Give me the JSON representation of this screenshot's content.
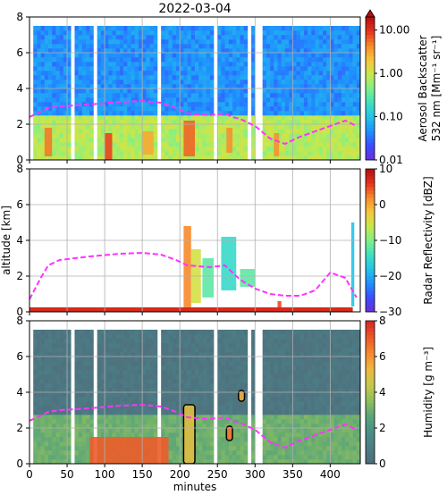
{
  "figure": {
    "title": "2022-03-04",
    "xlabel": "minutes",
    "ylabel": "altitude [km]"
  },
  "chart_data": [
    {
      "type": "heatmap",
      "panel": "aerosol-backscatter",
      "xlim": [
        0,
        440
      ],
      "ylim": [
        0,
        8
      ],
      "x_ticks": [
        0,
        50,
        100,
        150,
        200,
        250,
        300,
        350,
        400
      ],
      "y_ticks": [
        0,
        2,
        4,
        6,
        8
      ],
      "grid": true,
      "colorbar": {
        "label_line1": "Aerosol Backscatter",
        "label_line2": "532 nm [Mm⁻¹ sr⁻¹]",
        "scale": "log",
        "range": [
          0.01,
          20
        ],
        "ticks": [
          "0.01",
          "0.10",
          "1.00",
          "10.00"
        ],
        "extend": "max",
        "colormap": [
          "#6a2fd6",
          "#3b4cff",
          "#1f8fff",
          "#22c3e8",
          "#3fe0c0",
          "#7ff08a",
          "#c8e84a",
          "#f7c63b",
          "#f78a2a",
          "#e5321f",
          "#b30f0f"
        ]
      },
      "dashed_line": {
        "color": "#ff33ff",
        "x": [
          0,
          15,
          25,
          40,
          80,
          120,
          150,
          175,
          195,
          210,
          240,
          260,
          270,
          280,
          300,
          320,
          340,
          360,
          380,
          400,
          420,
          435
        ],
        "y": [
          2.4,
          2.7,
          2.9,
          3.0,
          3.1,
          3.25,
          3.3,
          3.2,
          2.9,
          2.6,
          2.5,
          2.6,
          2.4,
          2.3,
          1.9,
          1.2,
          0.9,
          1.3,
          1.6,
          1.9,
          2.2,
          1.9
        ]
      },
      "field": {
        "top_km": 7.3,
        "mid_value": 0.05,
        "low_value": 0.8,
        "aerosol_layer_top_km": 2.5,
        "gap_minutes": [
          [
            0,
            5
          ],
          [
            55,
            57
          ],
          [
            85,
            87
          ],
          [
            170,
            173
          ],
          [
            245,
            248
          ],
          [
            290,
            293
          ],
          [
            300,
            310
          ]
        ],
        "plumes": [
          {
            "x": [
              20,
              30
            ],
            "bottom": 0.2,
            "top": 1.8,
            "value": 5.0
          },
          {
            "x": [
              100,
              110
            ],
            "bottom": 0.0,
            "top": 1.5,
            "value": 8.0
          },
          {
            "x": [
              150,
              165
            ],
            "bottom": 0.3,
            "top": 1.6,
            "value": 3.0
          },
          {
            "x": [
              205,
              220
            ],
            "bottom": 0.2,
            "top": 2.2,
            "value": 6.0
          },
          {
            "x": [
              262,
              270
            ],
            "bottom": 0.4,
            "top": 1.8,
            "value": 4.0
          },
          {
            "x": [
              325,
              332
            ],
            "bottom": 0.2,
            "top": 1.5,
            "value": 4.0
          }
        ]
      }
    },
    {
      "type": "heatmap",
      "panel": "radar-reflectivity",
      "xlim": [
        0,
        440
      ],
      "ylim": [
        0,
        8
      ],
      "x_ticks": [
        0,
        50,
        100,
        150,
        200,
        250,
        300,
        350,
        400
      ],
      "y_ticks": [
        0,
        2,
        4,
        6,
        8
      ],
      "grid": true,
      "colorbar": {
        "label": "Radar Reflectivity [dBZ]",
        "scale": "linear",
        "range": [
          -30,
          10
        ],
        "ticks": [
          "−30",
          "−20",
          "−10",
          "0",
          "10"
        ],
        "colormap": [
          "#6a2fd6",
          "#3b4cff",
          "#1f8fff",
          "#22c3e8",
          "#3fe0c0",
          "#7ff08a",
          "#c8e84a",
          "#f7c63b",
          "#f78a2a",
          "#e5321f",
          "#b30f0f"
        ]
      },
      "dashed_line": {
        "color": "#ff33ff",
        "x": [
          0,
          15,
          25,
          40,
          80,
          120,
          150,
          175,
          195,
          210,
          240,
          260,
          270,
          280,
          300,
          320,
          340,
          360,
          380,
          400,
          420,
          435
        ],
        "y": [
          0.7,
          1.9,
          2.6,
          2.9,
          3.1,
          3.25,
          3.3,
          3.2,
          2.9,
          2.6,
          2.5,
          2.6,
          2.2,
          1.8,
          1.3,
          1.0,
          0.9,
          0.9,
          1.2,
          2.2,
          1.9,
          0.8
        ]
      },
      "field": {
        "surface_band_km": [
          0.0,
          0.25
        ],
        "surface_value": 7.0,
        "echoes": [
          {
            "x": [
              205,
              215
            ],
            "bottom": 0.2,
            "top": 4.8,
            "value": 2.0
          },
          {
            "x": [
              215,
              228
            ],
            "bottom": 0.5,
            "top": 3.5,
            "value": -5.0
          },
          {
            "x": [
              230,
              245
            ],
            "bottom": 0.8,
            "top": 3.0,
            "value": -12.0
          },
          {
            "x": [
              255,
              275
            ],
            "bottom": 1.2,
            "top": 4.2,
            "value": -15.0
          },
          {
            "x": [
              280,
              300
            ],
            "bottom": 1.4,
            "top": 2.4,
            "value": -12.0
          },
          {
            "x": [
              330,
              335
            ],
            "bottom": 0.1,
            "top": 0.6,
            "value": 5.0
          },
          {
            "x": [
              428,
              432
            ],
            "bottom": 0.3,
            "top": 5.0,
            "value": -18.0
          }
        ]
      }
    },
    {
      "type": "heatmap",
      "panel": "humidity",
      "xlim": [
        0,
        440
      ],
      "ylim": [
        0,
        8
      ],
      "x_ticks": [
        0,
        50,
        100,
        150,
        200,
        250,
        300,
        350,
        400
      ],
      "y_ticks": [
        0,
        2,
        4,
        6,
        8
      ],
      "grid": true,
      "colorbar": {
        "label": "Humidity [g m⁻³]",
        "scale": "linear",
        "range": [
          0,
          8
        ],
        "ticks": [
          "0",
          "2",
          "4",
          "6",
          "8"
        ],
        "colormap": [
          "#4f6b7a",
          "#4c7c85",
          "#4a8f86",
          "#5aa57a",
          "#8fbf5c",
          "#c8c84a",
          "#efb63e",
          "#f7872e",
          "#ec5629",
          "#d62624"
        ]
      },
      "dashed_line": {
        "color": "#ff33ff",
        "x": [
          0,
          15,
          25,
          40,
          80,
          120,
          150,
          175,
          195,
          210,
          240,
          260,
          270,
          280,
          300,
          320,
          340,
          360,
          380,
          400,
          420,
          435
        ],
        "y": [
          2.4,
          2.7,
          2.9,
          3.0,
          3.1,
          3.25,
          3.3,
          3.2,
          2.9,
          2.6,
          2.5,
          2.6,
          2.4,
          2.3,
          1.9,
          1.2,
          0.9,
          1.3,
          1.6,
          1.9,
          2.2,
          1.9
        ]
      },
      "field": {
        "top_km": 7.4,
        "upper_value": 0.6,
        "lower_value": 3.0,
        "gap_minutes": [
          [
            0,
            5
          ],
          [
            55,
            57
          ],
          [
            85,
            87
          ],
          [
            170,
            173
          ],
          [
            245,
            248
          ],
          [
            290,
            293
          ],
          [
            300,
            310
          ]
        ],
        "moist_layers": [
          {
            "x": [
              80,
              185
            ],
            "bottom": 0.0,
            "top": 1.5,
            "value": 7.0
          },
          {
            "x": [
              205,
              220
            ],
            "bottom": 0.0,
            "top": 3.3,
            "value": 5.0
          },
          {
            "x": [
              262,
              270
            ],
            "bottom": 1.3,
            "top": 2.1,
            "value": 6.5
          },
          {
            "x": [
              278,
              286
            ],
            "bottom": 3.5,
            "top": 4.1,
            "value": 5.5
          }
        ]
      }
    }
  ]
}
